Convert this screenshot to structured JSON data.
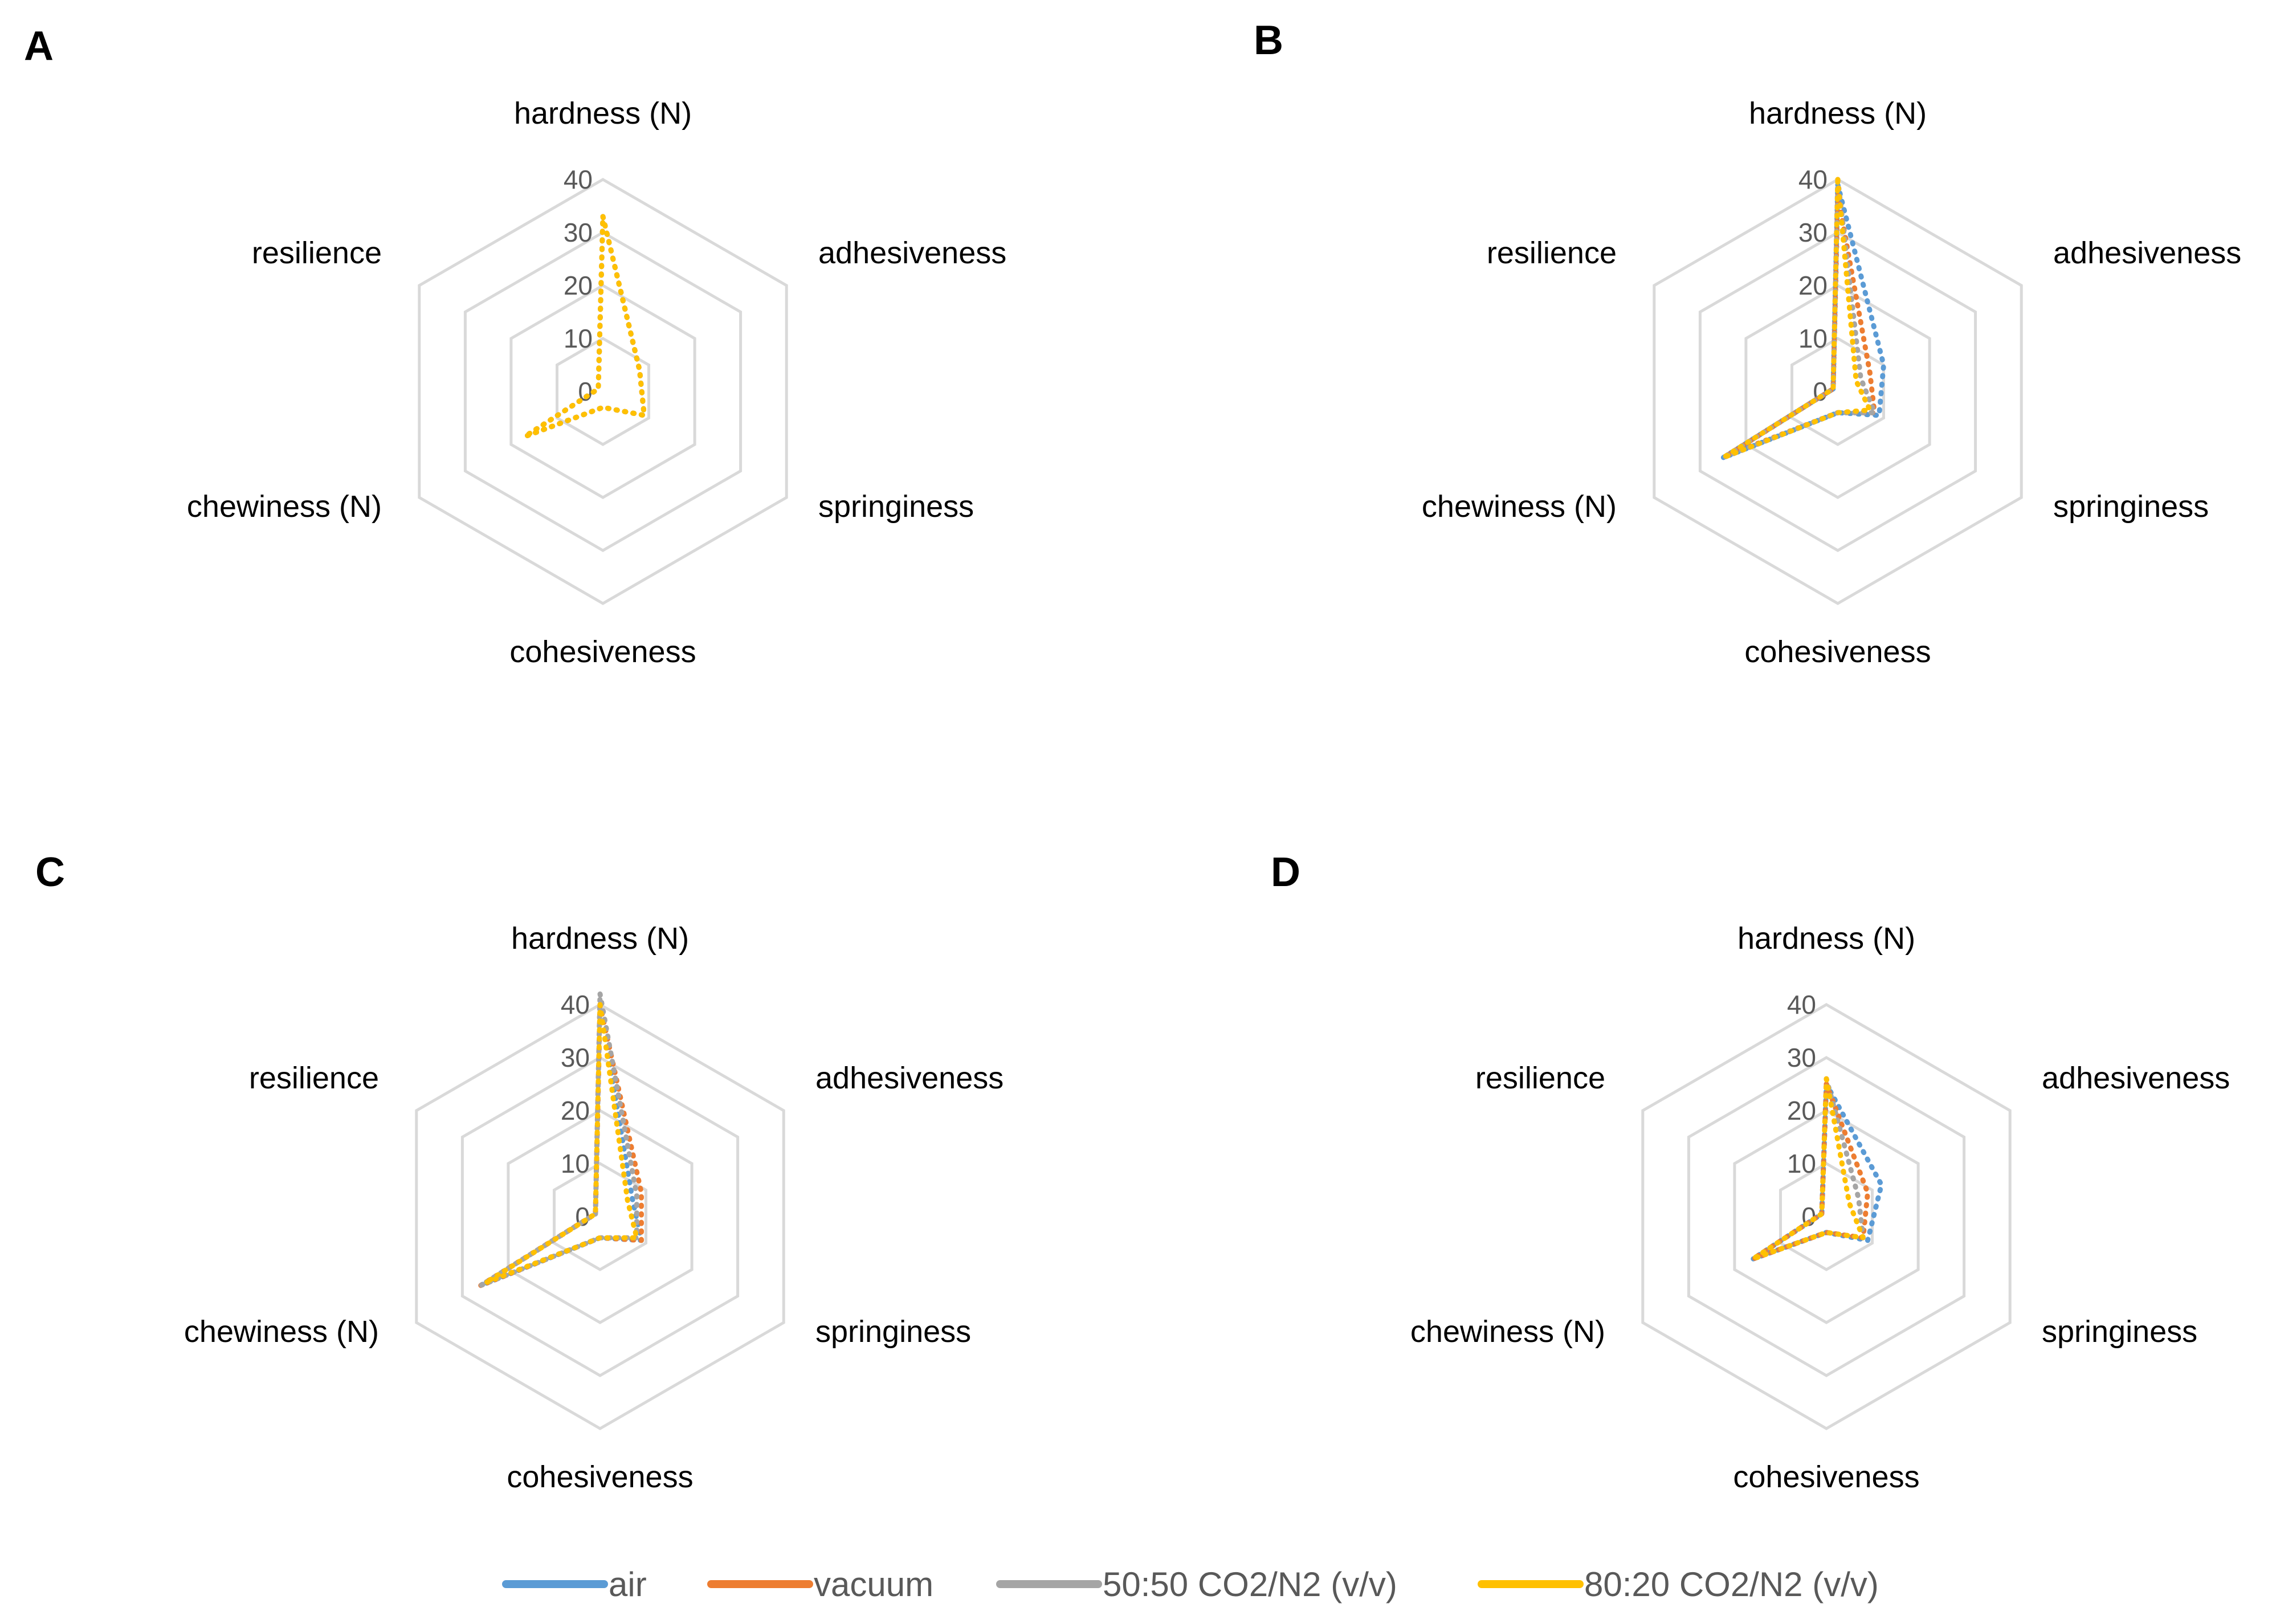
{
  "legend": [
    {
      "name": "air",
      "color": "#5b9bd5"
    },
    {
      "name": "vacuum",
      "color": "#ed7d31"
    },
    {
      "name": "50:50 CO2/N2 (v/v)",
      "color": "#a5a5a5"
    },
    {
      "name": "80:20 CO2/N2 (v/v)",
      "color": "#ffc000"
    }
  ],
  "chart_data": [
    {
      "type": "radar",
      "panel": "A",
      "axes": [
        "hardness (N)",
        "adhesiveness",
        "springiness",
        "cohesiveness",
        "chewiness (N)",
        "resilience"
      ],
      "range": [
        0,
        40
      ],
      "ticks": [
        "0",
        "10",
        "20",
        "30",
        "40"
      ],
      "series": [
        {
          "name": "air",
          "values": [
            33,
            8,
            9,
            3,
            17,
            1
          ]
        },
        {
          "name": "vacuum",
          "values": [
            33,
            8,
            9,
            3,
            17,
            1
          ]
        },
        {
          "name": "50:50 CO2/N2 (v/v)",
          "values": [
            33,
            8,
            9,
            3,
            17,
            1
          ]
        },
        {
          "name": "80:20 CO2/N2 (v/v)",
          "values": [
            33,
            8,
            9,
            3,
            17,
            1
          ]
        }
      ]
    },
    {
      "type": "radar",
      "panel": "B",
      "axes": [
        "hardness (N)",
        "adhesiveness",
        "springiness",
        "cohesiveness",
        "chewiness (N)",
        "resilience"
      ],
      "range": [
        0,
        40
      ],
      "ticks": [
        "0",
        "10",
        "20",
        "30",
        "40"
      ],
      "series": [
        {
          "name": "air",
          "values": [
            39,
            10,
            9,
            4,
            25,
            1
          ]
        },
        {
          "name": "vacuum",
          "values": [
            37,
            7,
            8,
            4,
            24,
            1
          ]
        },
        {
          "name": "50:50 CO2/N2 (v/v)",
          "values": [
            40,
            5,
            8,
            4,
            25,
            1
          ]
        },
        {
          "name": "80:20 CO2/N2 (v/v)",
          "values": [
            40,
            4,
            7,
            4,
            25,
            1
          ]
        }
      ]
    },
    {
      "type": "radar",
      "panel": "C",
      "axes": [
        "hardness (N)",
        "adhesiveness",
        "springiness",
        "cohesiveness",
        "chewiness (N)",
        "resilience"
      ],
      "range": [
        0,
        40
      ],
      "ticks": [
        "0",
        "10",
        "20",
        "30",
        "40"
      ],
      "series": [
        {
          "name": "air",
          "values": [
            40,
            7,
            9,
            4,
            26,
            1
          ]
        },
        {
          "name": "vacuum",
          "values": [
            40,
            9,
            9,
            4,
            26,
            1
          ]
        },
        {
          "name": "50:50 CO2/N2 (v/v)",
          "values": [
            42,
            8,
            8,
            4,
            26,
            1
          ]
        },
        {
          "name": "80:20 CO2/N2 (v/v)",
          "values": [
            40,
            6,
            8,
            4,
            25,
            1
          ]
        }
      ]
    },
    {
      "type": "radar",
      "panel": "D",
      "axes": [
        "hardness (N)",
        "adhesiveness",
        "springiness",
        "cohesiveness",
        "chewiness (N)",
        "resilience"
      ],
      "range": [
        0,
        40
      ],
      "ticks": [
        "0",
        "10",
        "20",
        "30",
        "40"
      ],
      "series": [
        {
          "name": "air",
          "values": [
            25,
            12,
            9,
            3,
            16,
            1
          ]
        },
        {
          "name": "vacuum",
          "values": [
            25,
            9,
            8,
            3,
            16,
            1
          ]
        },
        {
          "name": "50:50 CO2/N2 (v/v)",
          "values": [
            26,
            7,
            8,
            3,
            16,
            1
          ]
        },
        {
          "name": "80:20 CO2/N2 (v/v)",
          "values": [
            26,
            5,
            8,
            3,
            16,
            1
          ]
        }
      ]
    }
  ]
}
